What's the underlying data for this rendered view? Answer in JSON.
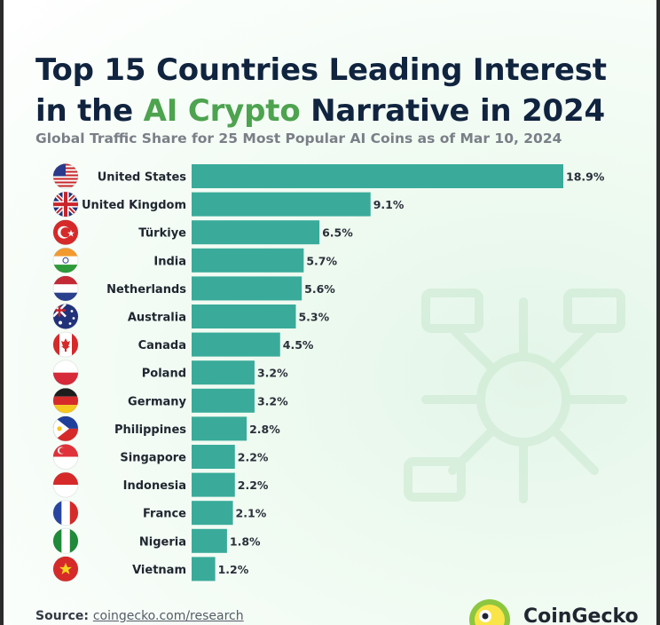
{
  "title": {
    "part1": "Top 15 Countries Leading Interest in the ",
    "highlight": "AI Crypto",
    "part2": " Narrative in 2024"
  },
  "subtitle": "Global Traffic Share for 25 Most Popular AI Coins as of Mar 10, 2024",
  "footer": {
    "source_label": "Source:",
    "source_url": "coingecko.com/research",
    "brand": "CoinGecko"
  },
  "colors": {
    "bar": "#3aab9a",
    "title": "#10243f",
    "highlight": "#4da34f",
    "subtitle": "#7a7f87"
  },
  "chart_data": {
    "type": "bar",
    "orientation": "horizontal",
    "categories": [
      "United States",
      "United Kingdom",
      "Türkiye",
      "India",
      "Netherlands",
      "Australia",
      "Canada",
      "Poland",
      "Germany",
      "Philippines",
      "Singapore",
      "Indonesia",
      "France",
      "Nigeria",
      "Vietnam"
    ],
    "values": [
      18.9,
      9.1,
      6.5,
      5.7,
      5.6,
      5.3,
      4.5,
      3.2,
      3.2,
      2.8,
      2.2,
      2.2,
      2.1,
      1.8,
      1.2
    ],
    "labels": [
      "18.9%",
      "9.1%",
      "6.5%",
      "5.7%",
      "5.6%",
      "5.3%",
      "4.5%",
      "3.2%",
      "3.2%",
      "2.8%",
      "2.2%",
      "2.2%",
      "2.1%",
      "1.8%",
      "1.2%"
    ],
    "flag_icons": [
      "us-flag-icon",
      "uk-flag-icon",
      "turkey-flag-icon",
      "india-flag-icon",
      "netherlands-flag-icon",
      "australia-flag-icon",
      "canada-flag-icon",
      "poland-flag-icon",
      "germany-flag-icon",
      "philippines-flag-icon",
      "singapore-flag-icon",
      "indonesia-flag-icon",
      "france-flag-icon",
      "nigeria-flag-icon",
      "vietnam-flag-icon"
    ],
    "xlim": [
      0,
      18.9
    ],
    "grid": false,
    "legend": "none"
  }
}
